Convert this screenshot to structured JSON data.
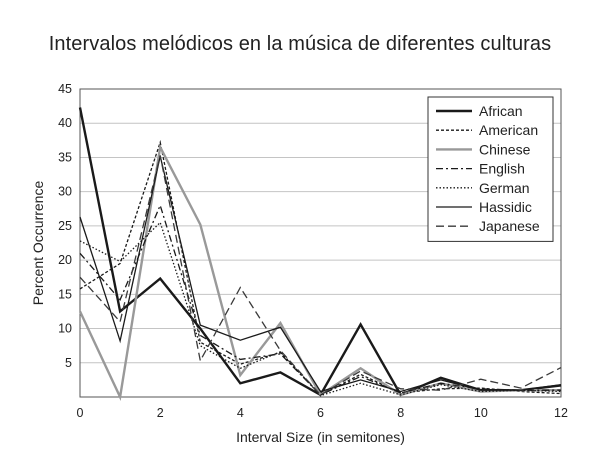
{
  "chart_data": {
    "type": "line",
    "title": "Intervalos melódicos en la música de diferentes culturas",
    "xlabel": "Interval Size (in semitones)",
    "ylabel": "Percent Occurrence",
    "xlim": [
      0,
      12
    ],
    "ylim": [
      0,
      45
    ],
    "xticks": [
      "0",
      "2",
      "4",
      "6",
      "8",
      "10",
      "12"
    ],
    "yticks": [
      "5",
      "10",
      "15",
      "20",
      "25",
      "30",
      "35",
      "40",
      "45"
    ],
    "grid": "horizontal",
    "legend_position": "top-right",
    "x": [
      0,
      1,
      2,
      3,
      4,
      5,
      6,
      7,
      8,
      9,
      10,
      11,
      12
    ],
    "series": [
      {
        "name": "African",
        "color": "#1a1a1a",
        "dash": "solid",
        "values": [
          42.3,
          12.5,
          17.3,
          10.0,
          2.0,
          3.6,
          0.3,
          10.6,
          0.3,
          2.8,
          1.0,
          1.0,
          1.7
        ]
      },
      {
        "name": "American",
        "color": "#1a1a1a",
        "dash": "dashed",
        "values": [
          15.8,
          19.5,
          37.2,
          8.0,
          4.8,
          6.5,
          0.3,
          3.3,
          0.6,
          1.2,
          1.3,
          0.8,
          0.5
        ]
      },
      {
        "name": "Chinese",
        "color": "#999999",
        "dash": "solid",
        "values": [
          12.5,
          0.0,
          36.5,
          25.2,
          3.2,
          10.8,
          0.3,
          4.2,
          0.3,
          2.0,
          0.8,
          1.0,
          1.0
        ]
      },
      {
        "name": "English",
        "color": "#1a1a1a",
        "dash": "dashdot",
        "values": [
          21.0,
          14.2,
          28.0,
          9.0,
          5.5,
          6.3,
          0.3,
          3.0,
          0.6,
          2.0,
          1.2,
          1.0,
          1.0
        ]
      },
      {
        "name": "German",
        "color": "#1a1a1a",
        "dash": "dotted",
        "values": [
          22.8,
          19.8,
          25.5,
          7.5,
          4.2,
          6.6,
          0.2,
          2.0,
          0.3,
          1.8,
          0.8,
          1.0,
          0.8
        ]
      },
      {
        "name": "Hassidic",
        "color": "#1a1a1a",
        "dash": "solid",
        "values": [
          26.3,
          8.2,
          35.2,
          10.5,
          8.3,
          10.2,
          0.8,
          2.5,
          0.8,
          2.5,
          1.0,
          1.0,
          1.8
        ]
      },
      {
        "name": "Japanese",
        "color": "#3a3a3a",
        "dash": "longdash",
        "values": [
          17.5,
          11.0,
          35.3,
          5.3,
          16.0,
          6.8,
          0.3,
          3.8,
          1.2,
          1.0,
          2.6,
          1.3,
          4.3
        ]
      }
    ]
  }
}
